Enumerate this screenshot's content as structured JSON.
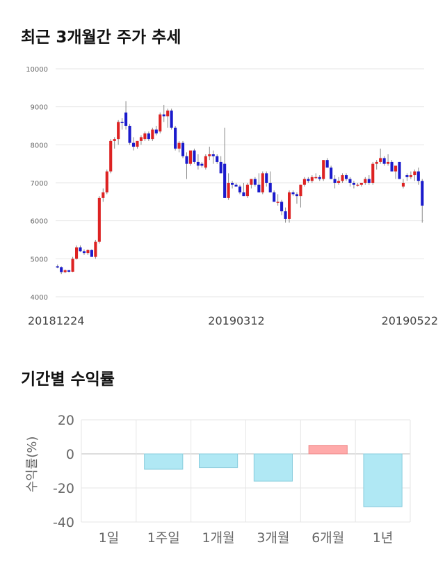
{
  "titles": {
    "candle": "최근 3개월간 주가 추세",
    "returns": "기간별 수익률"
  },
  "colors": {
    "up": "#dd2222",
    "down": "#1a1acc",
    "positive_bar": "#ffaaaa",
    "negative_bar": "#b0e8f4",
    "grid": "#e6e6e6",
    "axis_text": "#666666"
  },
  "chart_data": [
    {
      "type": "candlestick",
      "title": "최근 3개월간 주가 추세",
      "ylim": [
        4000,
        10000
      ],
      "yticks": [
        "4000",
        "5000",
        "6000",
        "7000",
        "8000",
        "9000",
        "10000"
      ],
      "x_labels": [
        "20181224",
        "20190312",
        "20190522"
      ],
      "grid": true,
      "candles": [
        [
          4800,
          4850,
          4750,
          4780
        ],
        [
          4780,
          4800,
          4600,
          4650
        ],
        [
          4650,
          4720,
          4620,
          4700
        ],
        [
          4700,
          4700,
          4640,
          4660
        ],
        [
          4660,
          5050,
          4650,
          5000
        ],
        [
          5000,
          5350,
          4980,
          5300
        ],
        [
          5300,
          5350,
          5180,
          5200
        ],
        [
          5200,
          5250,
          5100,
          5150
        ],
        [
          5150,
          5250,
          5100,
          5230
        ],
        [
          5230,
          5250,
          5050,
          5050
        ],
        [
          5050,
          5500,
          5000,
          5450
        ],
        [
          5450,
          6650,
          5400,
          6600
        ],
        [
          6600,
          6850,
          6500,
          6750
        ],
        [
          6750,
          7350,
          6700,
          7300
        ],
        [
          7300,
          8150,
          7250,
          8100
        ],
        [
          8100,
          8200,
          7900,
          8150
        ],
        [
          8150,
          8650,
          8000,
          8600
        ],
        [
          8600,
          8700,
          8400,
          8580
        ],
        [
          8850,
          9150,
          8400,
          8500
        ],
        [
          8500,
          8550,
          8000,
          8050
        ],
        [
          8050,
          8200,
          7850,
          7950
        ],
        [
          7950,
          8100,
          7900,
          8100
        ],
        [
          8100,
          8250,
          8000,
          8200
        ],
        [
          8150,
          8350,
          8100,
          8300
        ],
        [
          8300,
          8350,
          8100,
          8150
        ],
        [
          8150,
          8450,
          8100,
          8400
        ],
        [
          8400,
          8500,
          8250,
          8300
        ],
        [
          8350,
          8850,
          8300,
          8800
        ],
        [
          8800,
          9050,
          8600,
          8750
        ],
        [
          8750,
          8950,
          8450,
          8900
        ],
        [
          8900,
          8950,
          8400,
          8450
        ],
        [
          8450,
          8500,
          7850,
          7900
        ],
        [
          7900,
          8100,
          7800,
          8050
        ],
        [
          8050,
          8100,
          7650,
          7700
        ],
        [
          7700,
          7800,
          7100,
          7500
        ],
        [
          7500,
          7850,
          7450,
          7850
        ],
        [
          7850,
          7900,
          7500,
          7550
        ],
        [
          7550,
          7750,
          7350,
          7450
        ],
        [
          7500,
          7550,
          7400,
          7450
        ],
        [
          7400,
          7750,
          7350,
          7700
        ],
        [
          7700,
          7950,
          7600,
          7750
        ],
        [
          7750,
          7850,
          7500,
          7700
        ],
        [
          7700,
          7750,
          7500,
          7550
        ],
        [
          7550,
          7700,
          7250,
          7250
        ],
        [
          7500,
          8450,
          6600,
          6600
        ],
        [
          6600,
          7250,
          6550,
          7000
        ],
        [
          7000,
          7050,
          6850,
          6950
        ],
        [
          6950,
          7000,
          6900,
          6900
        ],
        [
          6900,
          6950,
          6700,
          6750
        ],
        [
          6750,
          7000,
          6650,
          6650
        ],
        [
          6650,
          7000,
          6600,
          6950
        ],
        [
          6950,
          7100,
          6850,
          7100
        ],
        [
          7100,
          7150,
          6900,
          6950
        ],
        [
          6950,
          7250,
          6750,
          6750
        ],
        [
          6750,
          7300,
          6700,
          7250
        ],
        [
          7250,
          7300,
          6900,
          7000
        ],
        [
          7000,
          7300,
          6750,
          6750
        ],
        [
          6750,
          6800,
          6500,
          6500
        ],
        [
          6500,
          6700,
          6400,
          6500
        ],
        [
          6500,
          6550,
          6150,
          6250
        ],
        [
          6250,
          6350,
          5950,
          6050
        ],
        [
          6050,
          6800,
          5950,
          6750
        ],
        [
          6750,
          6800,
          6650,
          6700
        ],
        [
          6700,
          6750,
          6450,
          6650
        ],
        [
          6650,
          6950,
          6350,
          6950
        ],
        [
          6950,
          7150,
          6900,
          7100
        ],
        [
          7100,
          7150,
          7000,
          7050
        ],
        [
          7050,
          7200,
          7000,
          7150
        ],
        [
          7150,
          7250,
          7100,
          7150
        ],
        [
          7150,
          7200,
          7050,
          7100
        ],
        [
          7100,
          7600,
          7050,
          7600
        ],
        [
          7600,
          7650,
          7400,
          7400
        ],
        [
          7400,
          7450,
          7100,
          7100
        ],
        [
          7100,
          7200,
          6850,
          7000
        ],
        [
          7000,
          7150,
          6950,
          7050
        ],
        [
          7050,
          7250,
          7000,
          7200
        ],
        [
          7200,
          7250,
          7050,
          7100
        ],
        [
          7100,
          7150,
          6900,
          7000
        ],
        [
          7000,
          7050,
          6850,
          6950
        ],
        [
          6950,
          7000,
          6900,
          6950
        ],
        [
          6950,
          7000,
          6900,
          7000
        ],
        [
          7000,
          7150,
          6950,
          7100
        ],
        [
          7100,
          7200,
          6950,
          7000
        ],
        [
          7000,
          7550,
          6950,
          7500
        ],
        [
          7500,
          7600,
          7350,
          7550
        ],
        [
          7550,
          7900,
          7500,
          7650
        ],
        [
          7650,
          7700,
          7450,
          7500
        ],
        [
          7500,
          7750,
          7450,
          7550
        ],
        [
          7550,
          7600,
          7300,
          7300
        ],
        [
          7300,
          7450,
          7100,
          7450
        ],
        [
          7550,
          7550,
          7100,
          7100
        ],
        [
          6900,
          7100,
          6850,
          7000
        ],
        [
          7200,
          7250,
          7050,
          7150
        ],
        [
          7150,
          7300,
          7100,
          7200
        ],
        [
          7200,
          7350,
          7050,
          7300
        ],
        [
          7300,
          7400,
          6950,
          7050
        ],
        [
          7050,
          7100,
          5950,
          6400
        ]
      ]
    },
    {
      "type": "bar",
      "title": "기간별 수익률",
      "ylabel": "수익률(%)",
      "ylim": [
        -40,
        20
      ],
      "yticks": [
        "20",
        "0",
        "-20",
        "-40"
      ],
      "categories": [
        "1일",
        "1주일",
        "1개월",
        "3개월",
        "6개월",
        "1년"
      ],
      "values": [
        0,
        -9,
        -8,
        -16,
        5,
        -31
      ],
      "grid": true
    }
  ]
}
